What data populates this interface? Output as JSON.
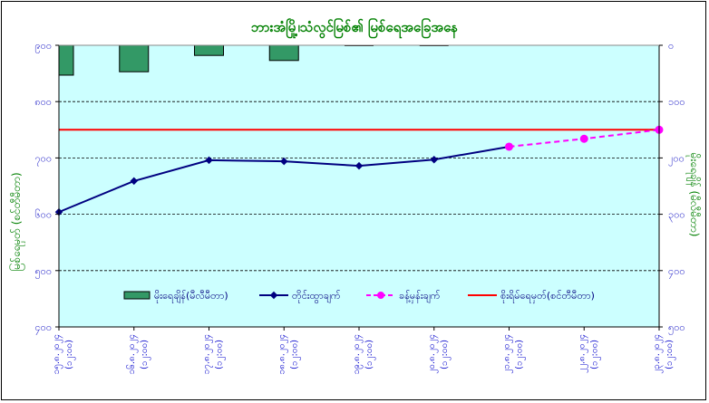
{
  "chart_data": {
    "type": "bar+line",
    "title": "ဘားအံမြို့၊သံလွင်မြစ်၏ မြစ်ရေအခြေအနေ",
    "ylabel": "မြစ်ရေမှတ် (စင်တီမီတာ)",
    "y2label": "မိုးရေချိန် (မီလီမီတာ)",
    "ylim": [
      400,
      900
    ],
    "y2lim": [
      500,
      0
    ],
    "yticks": [
      "၉၀၀",
      "၈၀၀",
      "၇၀၀",
      "၆၀၀",
      "၅၀၀",
      "၄၀၀"
    ],
    "y2ticks": [
      "၀",
      "၁၀၀",
      "၂၀၀",
      "၃၀၀",
      "၄၀၀",
      "၅၀၀"
    ],
    "grid": true,
    "legend_position": "bottom-inside",
    "categories": [
      [
        "၁၅.၈.၂၀၂၄",
        "(၁၂:၀၀)"
      ],
      [
        "၁၆.၈.၂၀၂၄",
        "(၁၂:၀၀)"
      ],
      [
        "၁၇.၈.၂၀၂၄",
        "(၁၂:၀၀)"
      ],
      [
        "၁၈.၈.၂၀၂၄",
        "(၁၂:၀၀)"
      ],
      [
        "၁၉.၈.၂၀၂၄",
        "(၁၂:၀၀)"
      ],
      [
        "၂၀.၈.၂၀၂၄",
        "(၁၂:၀၀)"
      ],
      [
        "၂၁.၈.၂၀၂၄",
        "(၁၂:၀၀)"
      ],
      [
        "၂၂.၈.၂၀၂၄",
        "(၁၂:၀၀)"
      ],
      [
        "၂၃.၈.၂၀၂၄",
        "(၁၂:၀၀)"
      ]
    ],
    "series": [
      {
        "name": "မိုးရေချိန်(မီလီမီတာ)",
        "kind": "bar",
        "axis": "right",
        "color": "#339966",
        "values": [
          53,
          47,
          18,
          27,
          1,
          1,
          null,
          null,
          null
        ]
      },
      {
        "name": "တိုင်းထွာချက်",
        "kind": "line",
        "axis": "left",
        "color": "#000080",
        "values": [
          604,
          659,
          696,
          694,
          686,
          697,
          720,
          null,
          null
        ]
      },
      {
        "name": "ခန့်မှန်းချက်",
        "kind": "dashed-line",
        "axis": "left",
        "color": "#ff00ff",
        "values": [
          null,
          null,
          null,
          null,
          null,
          null,
          720,
          734,
          750
        ]
      },
      {
        "name": "စိုးရိမ်ရေမှတ်(စင်တီမီတာ)",
        "kind": "hline",
        "axis": "left",
        "color": "#ff0000",
        "value": 750
      }
    ]
  }
}
